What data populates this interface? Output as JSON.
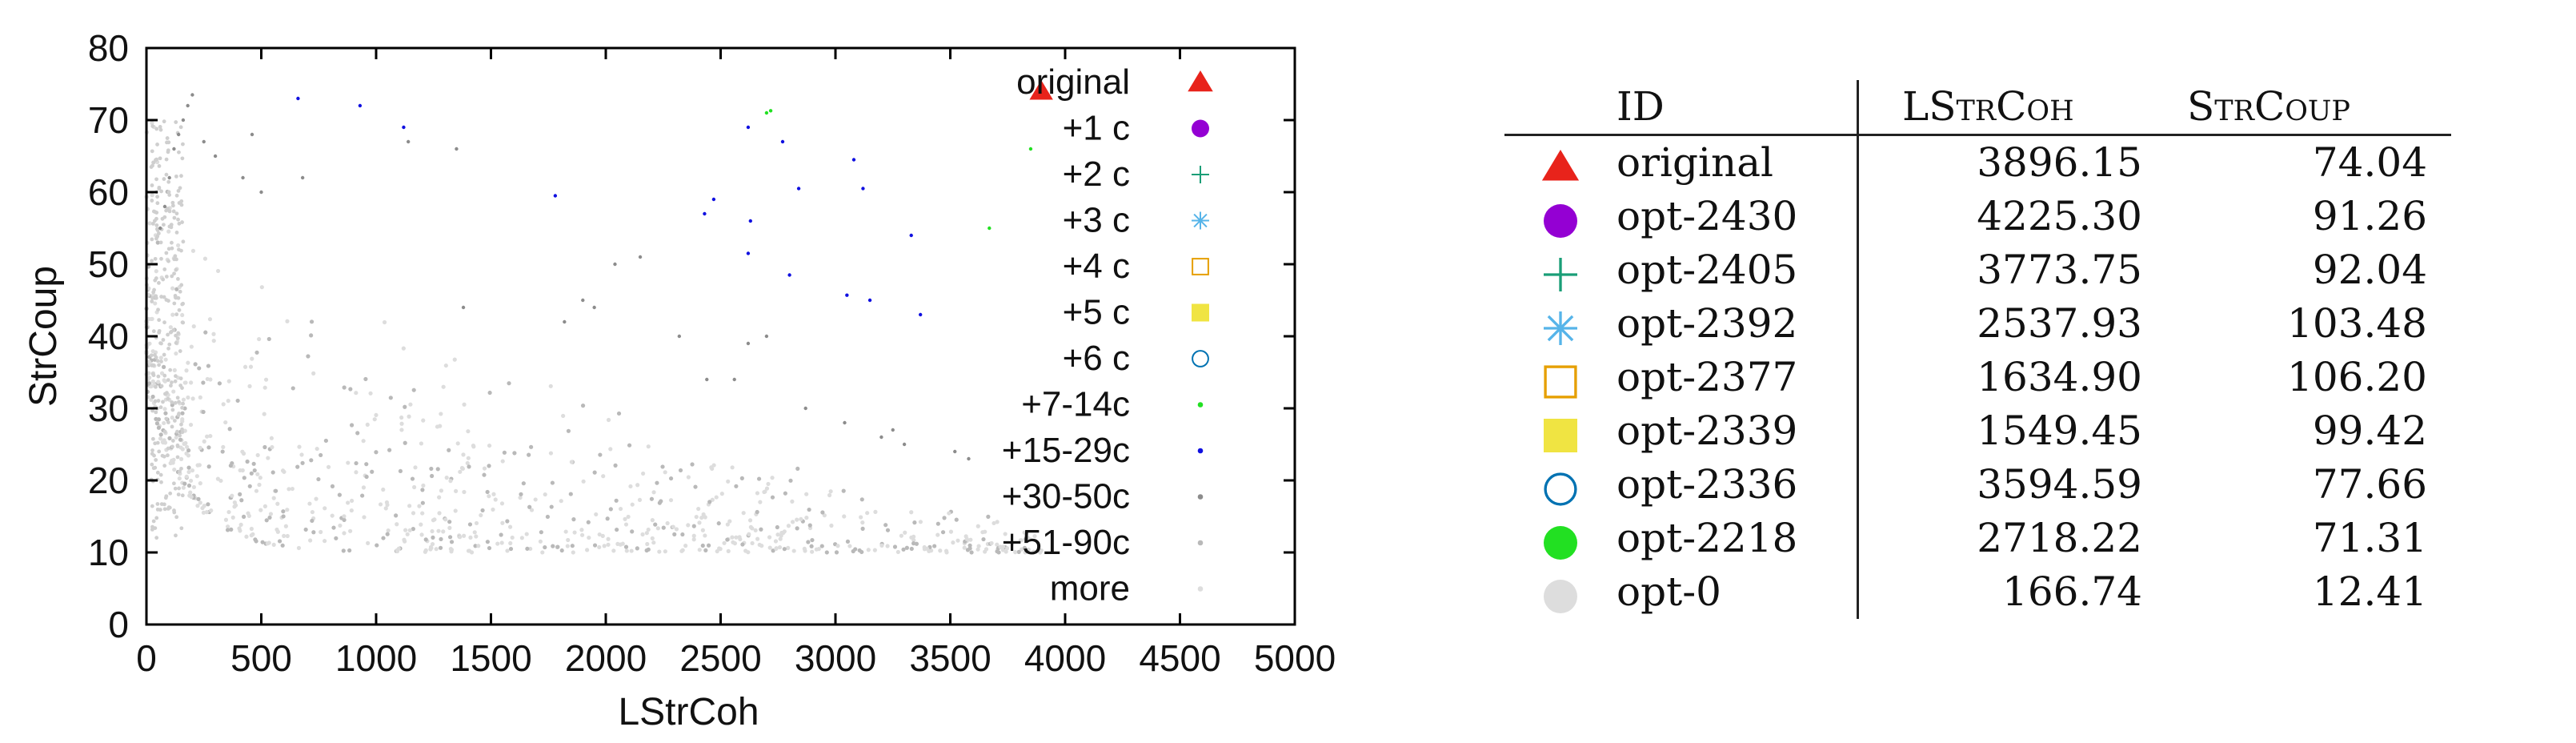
{
  "chart_data": {
    "type": "scatter",
    "title": "",
    "xlabel": "LStrCoh",
    "ylabel": "StrCoup",
    "xlim": [
      0,
      5000
    ],
    "ylim": [
      0,
      80
    ],
    "x_ticks": [
      "0",
      "500",
      "1000",
      "1500",
      "2000",
      "2500",
      "3000",
      "3500",
      "4000",
      "4500",
      "5000"
    ],
    "y_ticks": [
      "0",
      "10",
      "20",
      "30",
      "40",
      "50",
      "60",
      "70",
      "80"
    ],
    "grid": false,
    "legend_position": "top-right",
    "series": [
      {
        "name": "original",
        "marker": "triangle",
        "color": "#e8231b",
        "x": [
          3896
        ],
        "y": [
          74
        ]
      },
      {
        "name": "+1 c",
        "marker": "circle-filled",
        "color": "#9400d3",
        "x": [],
        "y": []
      },
      {
        "name": "+2 c",
        "marker": "plus",
        "color": "#1a9e77",
        "x": [],
        "y": []
      },
      {
        "name": "+3 c",
        "marker": "asterisk",
        "color": "#56b4e9",
        "x": [],
        "y": []
      },
      {
        "name": "+4 c",
        "marker": "square-open",
        "color": "#e69f00",
        "x": [],
        "y": []
      },
      {
        "name": "+5 c",
        "marker": "square-filled",
        "color": "#f0e442",
        "x": [],
        "y": []
      },
      {
        "name": "+6 c",
        "marker": "circle-open",
        "color": "#0072b2",
        "x": [],
        "y": []
      },
      {
        "name": "+7-14c",
        "marker": "dot",
        "color": "#22e022",
        "x": [
          2718,
          2700,
          3850,
          3670
        ],
        "y": [
          71.3,
          71,
          66,
          55
        ]
      },
      {
        "name": "+15-29c",
        "marker": "dot",
        "color": "#1010e0",
        "x": [
          660,
          930,
          1120,
          1780,
          2620,
          2770,
          2840,
          3080,
          3120,
          2430,
          2470,
          2630,
          2620,
          2800,
          3050,
          3150,
          3330,
          3370
        ],
        "y": [
          73,
          72,
          69,
          59.5,
          69,
          67,
          60.5,
          64.5,
          60.5,
          57,
          59,
          56,
          51.5,
          48.5,
          45.7,
          45,
          54,
          43
        ]
      },
      {
        "name": "+30-50c",
        "marker": "dot",
        "color": "#8c8c8c",
        "x": [
          60,
          80,
          100,
          120,
          140,
          160,
          180,
          200,
          250,
          300,
          420,
          460,
          500,
          680,
          1140,
          1350,
          1380,
          1820,
          1900,
          1950,
          2040,
          2150,
          2320,
          2440,
          2560,
          2620,
          2700,
          2870,
          3040,
          3200,
          3250,
          3300,
          3520,
          3580
        ],
        "y": [
          55,
          58,
          62,
          66,
          68,
          70,
          72,
          73.5,
          67,
          65,
          62,
          68,
          60,
          62,
          67,
          66,
          44,
          42,
          45,
          44,
          50,
          51,
          40,
          34,
          34,
          39,
          40,
          30,
          28,
          26,
          27,
          25,
          24,
          23
        ]
      },
      {
        "name": "+51-90c",
        "marker": "dot",
        "color": "#b9b9b9",
        "x": [],
        "y": []
      },
      {
        "name": "more",
        "marker": "dot",
        "color": "#dddddd",
        "x": [],
        "y": []
      }
    ]
  },
  "table": {
    "headers": {
      "id": "ID",
      "lstrcoh": "LStrCoh",
      "strcoup": "StrCoup"
    },
    "rows": [
      {
        "marker": "triangle",
        "color": "#e8231b",
        "id": "original",
        "lstrcoh": "3896.15",
        "strcoup": "74.04"
      },
      {
        "marker": "circle-filled",
        "color": "#9400d3",
        "id": "opt-2430",
        "lstrcoh": "4225.30",
        "strcoup": "91.26"
      },
      {
        "marker": "plus",
        "color": "#1a9e77",
        "id": "opt-2405",
        "lstrcoh": "3773.75",
        "strcoup": "92.04"
      },
      {
        "marker": "asterisk",
        "color": "#56b4e9",
        "id": "opt-2392",
        "lstrcoh": "2537.93",
        "strcoup": "103.48"
      },
      {
        "marker": "square-open",
        "color": "#e69f00",
        "id": "opt-2377",
        "lstrcoh": "1634.90",
        "strcoup": "106.20"
      },
      {
        "marker": "square-filled",
        "color": "#f0e442",
        "id": "opt-2339",
        "lstrcoh": "1549.45",
        "strcoup": "99.42"
      },
      {
        "marker": "circle-open",
        "color": "#0072b2",
        "id": "opt-2336",
        "lstrcoh": "3594.59",
        "strcoup": "77.66"
      },
      {
        "marker": "circle-filled",
        "color": "#22e022",
        "id": "opt-2218",
        "lstrcoh": "2718.22",
        "strcoup": "71.31"
      },
      {
        "marker": "circle-filled",
        "color": "#dddddd",
        "id": "opt-0",
        "lstrcoh": "166.74",
        "strcoup": "12.41"
      }
    ]
  }
}
